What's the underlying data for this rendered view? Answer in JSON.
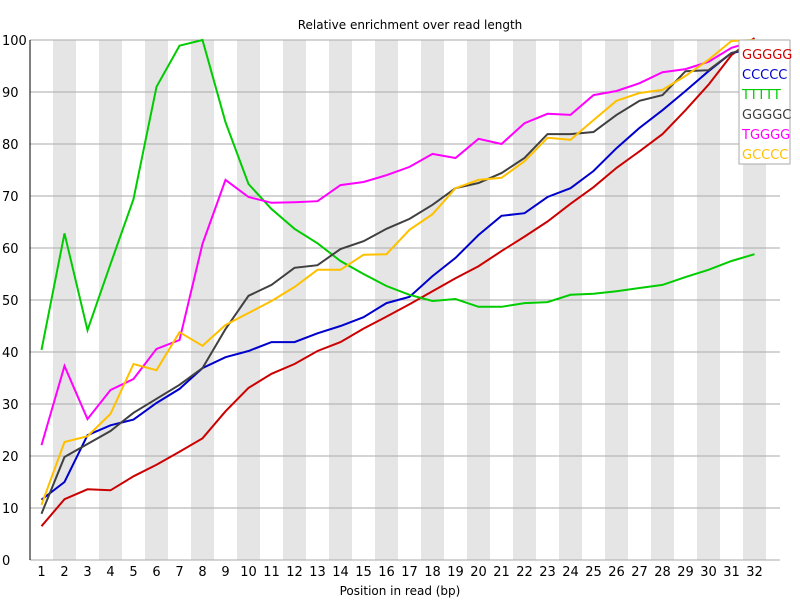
{
  "chart_data": {
    "type": "line",
    "title": "Relative enrichment over read length",
    "xlabel": "Position in read (bp)",
    "ylabel": "",
    "ylim": [
      0,
      100
    ],
    "yticks": [
      0,
      10,
      20,
      30,
      40,
      50,
      60,
      70,
      80,
      90,
      100
    ],
    "grid": true,
    "alternating_column_bands": true,
    "legend_position": "top-right-inside",
    "x": [
      1,
      2,
      3,
      4,
      5,
      6,
      7,
      8,
      9,
      10,
      11,
      12,
      13,
      14,
      15,
      16,
      17,
      18,
      19,
      20,
      21,
      22,
      23,
      24,
      25,
      26,
      27,
      28,
      29,
      30,
      31,
      32
    ],
    "series": [
      {
        "name": "GGGGG",
        "color": "#cc0000",
        "values": [
          6.5,
          11.7,
          13.6,
          13.4,
          16.1,
          18.3,
          20.8,
          23.4,
          28.6,
          33.1,
          35.8,
          37.7,
          40.2,
          41.9,
          44.5,
          46.8,
          49.2,
          51.7,
          54.2,
          56.5,
          59.4,
          62.2,
          65.1,
          68.5,
          71.7,
          75.4,
          78.6,
          81.9,
          86.5,
          91.4,
          97.1,
          100.5
        ]
      },
      {
        "name": "CCCCC",
        "color": "#0000cc",
        "values": [
          11.6,
          15.0,
          24.0,
          25.9,
          27.0,
          30.2,
          32.9,
          36.9,
          39.0,
          40.2,
          41.9,
          41.9,
          43.6,
          45.0,
          46.7,
          49.4,
          50.6,
          54.6,
          58.1,
          62.5,
          66.2,
          66.7,
          69.8,
          71.5,
          74.8,
          79.2,
          83.1,
          86.5,
          90.2,
          94.0,
          97.5,
          98.3
        ]
      },
      {
        "name": "TTTTT",
        "color": "#00cc00",
        "values": [
          40.4,
          62.8,
          44.2,
          56.9,
          69.4,
          91.0,
          98.9,
          100.0,
          84.2,
          72.3,
          67.5,
          63.7,
          60.9,
          57.5,
          55.0,
          52.7,
          51.0,
          49.8,
          50.2,
          48.7,
          48.7,
          49.4,
          49.6,
          51.0,
          51.2,
          51.7,
          52.3,
          52.9,
          54.4,
          55.8,
          57.5,
          58.8
        ]
      },
      {
        "name": "GGGGC",
        "color": "#404040",
        "values": [
          8.9,
          19.8,
          22.3,
          24.8,
          28.3,
          31.0,
          33.7,
          36.9,
          44.4,
          50.8,
          52.9,
          56.2,
          56.7,
          59.8,
          61.3,
          63.7,
          65.6,
          68.3,
          71.5,
          72.5,
          74.4,
          77.3,
          81.9,
          81.9,
          82.3,
          85.6,
          88.3,
          89.4,
          94.0,
          94.2,
          97.5,
          98.8
        ]
      },
      {
        "name": "TGGGG",
        "color": "#ff00ff",
        "values": [
          22.1,
          37.3,
          27.1,
          32.7,
          34.8,
          40.6,
          42.3,
          60.8,
          73.1,
          69.8,
          68.7,
          68.8,
          69.0,
          72.1,
          72.7,
          74.0,
          75.6,
          78.1,
          77.3,
          81.0,
          80.0,
          84.0,
          85.8,
          85.6,
          89.4,
          90.2,
          91.7,
          93.8,
          94.4,
          95.8,
          98.5,
          99.8
        ]
      },
      {
        "name": "GCCCC",
        "color": "#ffc000",
        "values": [
          10.6,
          22.7,
          23.8,
          28.1,
          37.7,
          36.5,
          43.8,
          41.2,
          45.2,
          47.5,
          49.8,
          52.5,
          55.8,
          55.8,
          58.7,
          58.8,
          63.5,
          66.5,
          71.5,
          73.1,
          73.5,
          76.7,
          81.2,
          80.8,
          84.6,
          88.3,
          89.8,
          90.4,
          93.1,
          96.2,
          99.8,
          100.0
        ]
      }
    ]
  },
  "style": {
    "band_color": "#e5e5e5",
    "grid_color": "#aaaaaa",
    "axis_color": "#000000",
    "legend_border": "#aaaaaa"
  }
}
